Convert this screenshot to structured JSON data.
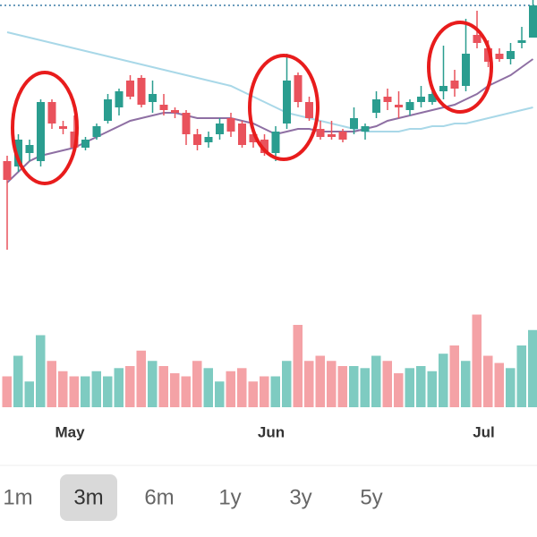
{
  "chart_data": {
    "type": "candlestick",
    "categories": [
      null,
      null,
      null,
      null,
      null,
      null,
      "May",
      null,
      null,
      null,
      null,
      null,
      null,
      null,
      null,
      null,
      null,
      null,
      null,
      null,
      null,
      null,
      null,
      null,
      "Jun",
      null,
      null,
      null,
      null,
      null,
      null,
      null,
      null,
      null,
      null,
      null,
      null,
      null,
      null,
      null,
      null,
      null,
      null,
      "Jul",
      null,
      null,
      null,
      null
    ],
    "open": [
      40,
      38,
      43,
      40,
      62,
      53,
      51,
      45,
      49,
      55,
      60,
      70,
      71,
      62,
      61,
      59,
      58,
      50,
      47,
      50,
      56,
      54,
      50,
      48,
      43,
      54,
      72,
      62,
      52,
      50,
      51,
      52,
      51,
      58,
      64,
      61,
      59,
      62,
      62,
      66,
      70,
      68,
      87,
      82,
      80,
      78,
      84,
      86
    ],
    "high": [
      42,
      50,
      48,
      63,
      63,
      55,
      57,
      49,
      54,
      65,
      67,
      72,
      72,
      70,
      65,
      60,
      59,
      52,
      51,
      56,
      58,
      55,
      52,
      50,
      53,
      80,
      73,
      64,
      55,
      55,
      52,
      60,
      54,
      66,
      67,
      66,
      63,
      68,
      68,
      83,
      74,
      93,
      96,
      85,
      82,
      84,
      90,
      100
    ],
    "low": [
      7,
      36,
      40,
      38,
      52,
      50,
      44,
      44,
      48,
      54,
      57,
      63,
      60,
      58,
      57,
      56,
      46,
      44,
      45,
      48,
      49,
      45,
      45,
      42,
      40,
      52,
      60,
      55,
      48,
      48,
      47,
      50,
      48,
      56,
      59,
      56,
      57,
      60,
      61,
      63,
      64,
      66,
      82,
      75,
      77,
      76,
      82,
      86
    ],
    "close": [
      33,
      48,
      46,
      62,
      54,
      52,
      45,
      48,
      53,
      63,
      66,
      64,
      61,
      65,
      59,
      58,
      50,
      46,
      49,
      54,
      51,
      46,
      47,
      43,
      51,
      70,
      62,
      56,
      49,
      49,
      48,
      56,
      53,
      63,
      62,
      60,
      62,
      64,
      65,
      68,
      67,
      80,
      84,
      77,
      78,
      81,
      85,
      98
    ],
    "up_color": "#2a9d8f",
    "down_color": "#e9525c",
    "ylim": [
      0,
      100
    ],
    "volume": [
      30,
      50,
      25,
      70,
      45,
      35,
      30,
      30,
      35,
      30,
      38,
      40,
      55,
      45,
      40,
      33,
      30,
      45,
      38,
      25,
      35,
      38,
      25,
      30,
      30,
      45,
      80,
      45,
      50,
      45,
      40,
      40,
      38,
      50,
      45,
      33,
      38,
      40,
      35,
      52,
      60,
      45,
      90,
      50,
      43,
      38,
      60,
      75
    ],
    "volume_ylim": [
      0,
      100
    ],
    "series": [
      {
        "name": "ma-slow",
        "color": "#a9d8e8",
        "values": [
          88,
          87,
          86,
          85,
          84,
          83,
          82,
          81,
          80,
          79,
          78,
          77,
          76,
          75,
          74,
          73,
          72,
          71,
          70,
          69,
          68,
          66,
          64,
          62,
          60,
          58,
          57,
          56,
          55,
          54,
          53,
          52,
          51,
          51,
          51,
          51,
          52,
          52,
          53,
          53,
          54,
          54,
          55,
          56,
          57,
          58,
          59,
          60
        ]
      },
      {
        "name": "ma-fast",
        "color": "#8e6fa3",
        "values": [
          32,
          36,
          40,
          42,
          43,
          44,
          45,
          47,
          49,
          51,
          53,
          55,
          56,
          57,
          58,
          58,
          57,
          56,
          56,
          56,
          56,
          55,
          54,
          52,
          50,
          51,
          52,
          52,
          51,
          51,
          51,
          51,
          52,
          53,
          55,
          56,
          57,
          58,
          59,
          60,
          61,
          63,
          65,
          68,
          70,
          72,
          75,
          78
        ]
      }
    ]
  },
  "ranges": [
    "1m",
    "3m",
    "6m",
    "1y",
    "3y",
    "5y"
  ],
  "selected_range": 1
}
